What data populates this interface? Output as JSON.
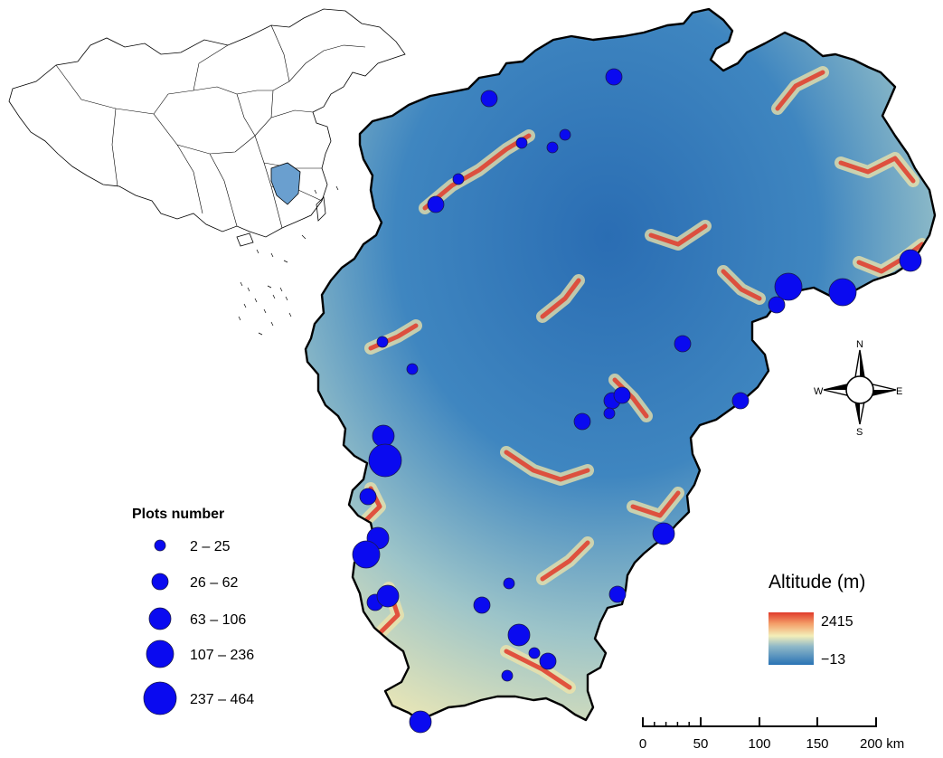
{
  "inset": {
    "region": "China",
    "highlight": "Jiangxi"
  },
  "colors": {
    "plot": "#0a0af0",
    "province_outline": "#000000",
    "lowland": "#2a73b5",
    "mid": "#f3efb9",
    "highland": "#e03a2a"
  },
  "plots_legend": {
    "title": "Plots number",
    "classes": [
      {
        "label": "2 – 25"
      },
      {
        "label": "26 – 62"
      },
      {
        "label": "63 – 106"
      },
      {
        "label": "107 – 236"
      },
      {
        "label": "237 – 464"
      }
    ]
  },
  "altitude_legend": {
    "title": "Altitude (m)",
    "max_label": "2415",
    "min_label": "−13",
    "max": 2415,
    "min": -13
  },
  "compass": {
    "n": "N",
    "s": "S",
    "e": "E",
    "w": "W"
  },
  "scale_bar": {
    "ticks": [
      "0",
      "50",
      "100",
      "150",
      "200 km"
    ]
  },
  "plots": [
    {
      "cls": 1
    },
    {
      "cls": 1
    },
    {
      "cls": 0
    },
    {
      "cls": 0
    },
    {
      "cls": 0
    },
    {
      "cls": 0
    },
    {
      "cls": 1
    },
    {
      "cls": 2
    },
    {
      "cls": 3
    },
    {
      "cls": 3
    },
    {
      "cls": 1
    },
    {
      "cls": 0
    },
    {
      "cls": 0
    },
    {
      "cls": 1
    },
    {
      "cls": 1
    },
    {
      "cls": 1
    },
    {
      "cls": 0
    },
    {
      "cls": 1
    },
    {
      "cls": 1
    },
    {
      "cls": 2
    },
    {
      "cls": 4
    },
    {
      "cls": 1
    },
    {
      "cls": 2
    },
    {
      "cls": 3
    },
    {
      "cls": 1
    },
    {
      "cls": 2
    },
    {
      "cls": 2
    },
    {
      "cls": 1
    },
    {
      "cls": 0
    },
    {
      "cls": 1
    },
    {
      "cls": 2
    },
    {
      "cls": 0
    },
    {
      "cls": 1
    },
    {
      "cls": 0
    },
    {
      "cls": 2
    }
  ]
}
